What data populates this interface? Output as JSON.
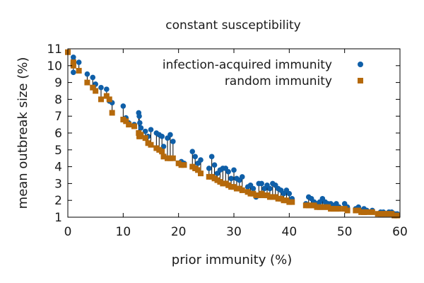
{
  "chart_data": {
    "type": "scatter",
    "title": "constant susceptibility",
    "xlabel": "prior immunity (%)",
    "ylabel": "mean outbreak size (%)",
    "xlim": [
      0,
      60
    ],
    "ylim": [
      1,
      11
    ],
    "xticks": [
      0,
      10,
      20,
      30,
      40,
      50,
      60
    ],
    "yticks": [
      1,
      2,
      3,
      4,
      5,
      6,
      7,
      8,
      9,
      10,
      11
    ],
    "legend_position": "top-right",
    "colors": {
      "infection": "#0f5fa8",
      "random": "#b5690b",
      "connector": "#000000"
    },
    "series": [
      {
        "name": "infection-acquired immunity",
        "marker": "circle",
        "points": [
          [
            0,
            10.8
          ],
          [
            1,
            10.5
          ],
          [
            1,
            9.6
          ],
          [
            1,
            10.3
          ],
          [
            2,
            10.2
          ],
          [
            3.5,
            9.5
          ],
          [
            4.5,
            9.3
          ],
          [
            5,
            8.9
          ],
          [
            6,
            8.7
          ],
          [
            7,
            8.6
          ],
          [
            7.5,
            7.9
          ],
          [
            8,
            7.8
          ],
          [
            10,
            7.6
          ],
          [
            10.5,
            6.9
          ],
          [
            11,
            6.6
          ],
          [
            12,
            6.5
          ],
          [
            12.8,
            7.2
          ],
          [
            12.9,
            7.0
          ],
          [
            13,
            6.6
          ],
          [
            13.2,
            6.3
          ],
          [
            14,
            6.1
          ],
          [
            14.5,
            5.8
          ],
          [
            15,
            6.2
          ],
          [
            16,
            6.0
          ],
          [
            16.5,
            5.9
          ],
          [
            17,
            5.8
          ],
          [
            17.3,
            5.2
          ],
          [
            18,
            5.7
          ],
          [
            18.5,
            5.9
          ],
          [
            19,
            5.5
          ],
          [
            20,
            4.2
          ],
          [
            20.5,
            4.3
          ],
          [
            21,
            4.2
          ],
          [
            22.5,
            4.9
          ],
          [
            23,
            4.6
          ],
          [
            23.5,
            4.2
          ],
          [
            24,
            4.4
          ],
          [
            25.5,
            3.9
          ],
          [
            26,
            4.6
          ],
          [
            26.5,
            4.1
          ],
          [
            27,
            3.6
          ],
          [
            27.5,
            3.8
          ],
          [
            28,
            3.9
          ],
          [
            28.5,
            3.9
          ],
          [
            29,
            3.7
          ],
          [
            29.5,
            3.3
          ],
          [
            30,
            3.8
          ],
          [
            30.5,
            3.3
          ],
          [
            31,
            3.2
          ],
          [
            31.5,
            3.4
          ],
          [
            32.5,
            2.8
          ],
          [
            33,
            2.9
          ],
          [
            33.5,
            2.7
          ],
          [
            34,
            2.2
          ],
          [
            34.5,
            3.0
          ],
          [
            35,
            3.0
          ],
          [
            35.5,
            2.7
          ],
          [
            36,
            2.9
          ],
          [
            36.5,
            2.7
          ],
          [
            37,
            3.0
          ],
          [
            37.5,
            2.9
          ],
          [
            38,
            2.7
          ],
          [
            38.5,
            2.6
          ],
          [
            39,
            2.4
          ],
          [
            39.5,
            2.6
          ],
          [
            40,
            2.4
          ],
          [
            40.5,
            2.1
          ],
          [
            43,
            1.8
          ],
          [
            43.5,
            2.2
          ],
          [
            44,
            2.1
          ],
          [
            44.5,
            1.9
          ],
          [
            45,
            1.8
          ],
          [
            45.5,
            1.9
          ],
          [
            46,
            2.1
          ],
          [
            46.5,
            1.9
          ],
          [
            47,
            1.8
          ],
          [
            47.5,
            1.8
          ],
          [
            48,
            1.7
          ],
          [
            48.5,
            1.8
          ],
          [
            49,
            1.6
          ],
          [
            50,
            1.8
          ],
          [
            50.5,
            1.6
          ],
          [
            52,
            1.5
          ],
          [
            52.5,
            1.6
          ],
          [
            53,
            1.4
          ],
          [
            53.5,
            1.5
          ],
          [
            54,
            1.4
          ],
          [
            55,
            1.4
          ],
          [
            56,
            1.2
          ],
          [
            56.5,
            1.3
          ],
          [
            57,
            1.3
          ],
          [
            57.5,
            1.2
          ],
          [
            58,
            1.3
          ],
          [
            58.5,
            1.3
          ],
          [
            59,
            1.2
          ],
          [
            59.5,
            1.2
          ]
        ]
      },
      {
        "name": "random immunity",
        "marker": "square",
        "points": [
          [
            0,
            10.8
          ],
          [
            1,
            10.2
          ],
          [
            1,
            10.0
          ],
          [
            1,
            10.1
          ],
          [
            2,
            9.7
          ],
          [
            3.5,
            9.0
          ],
          [
            4.5,
            8.7
          ],
          [
            5,
            8.5
          ],
          [
            6,
            8.0
          ],
          [
            7,
            8.2
          ],
          [
            7.5,
            8.0
          ],
          [
            8,
            7.2
          ],
          [
            10,
            6.8
          ],
          [
            10.5,
            6.7
          ],
          [
            11,
            6.5
          ],
          [
            12,
            6.4
          ],
          [
            12.8,
            6.0
          ],
          [
            12.9,
            5.8
          ],
          [
            13,
            5.8
          ],
          [
            13.2,
            5.9
          ],
          [
            14,
            5.7
          ],
          [
            14.5,
            5.4
          ],
          [
            15,
            5.3
          ],
          [
            16,
            5.1
          ],
          [
            16.5,
            5.0
          ],
          [
            17,
            4.9
          ],
          [
            17.3,
            4.6
          ],
          [
            18,
            4.5
          ],
          [
            18.5,
            4.5
          ],
          [
            19,
            4.5
          ],
          [
            20,
            4.2
          ],
          [
            20.5,
            4.1
          ],
          [
            21,
            4.1
          ],
          [
            22.5,
            4.0
          ],
          [
            23,
            3.9
          ],
          [
            23.5,
            3.8
          ],
          [
            24,
            3.6
          ],
          [
            25.5,
            3.4
          ],
          [
            26,
            3.4
          ],
          [
            26.5,
            3.3
          ],
          [
            27,
            3.2
          ],
          [
            27.5,
            3.1
          ],
          [
            28,
            3.0
          ],
          [
            28.5,
            3.0
          ],
          [
            29,
            2.9
          ],
          [
            29.5,
            2.8
          ],
          [
            30,
            2.8
          ],
          [
            30.5,
            2.7
          ],
          [
            31,
            2.7
          ],
          [
            31.5,
            2.6
          ],
          [
            32.5,
            2.5
          ],
          [
            33,
            2.4
          ],
          [
            33.5,
            2.4
          ],
          [
            34,
            2.3
          ],
          [
            34.5,
            2.3
          ],
          [
            35,
            2.4
          ],
          [
            35.5,
            2.3
          ],
          [
            36,
            2.3
          ],
          [
            36.5,
            2.2
          ],
          [
            37,
            2.2
          ],
          [
            37.5,
            2.2
          ],
          [
            38,
            2.1
          ],
          [
            38.5,
            2.1
          ],
          [
            39,
            2.0
          ],
          [
            39.5,
            2.0
          ],
          [
            40,
            1.9
          ],
          [
            40.5,
            1.9
          ],
          [
            43,
            1.7
          ],
          [
            43.5,
            1.7
          ],
          [
            44,
            1.7
          ],
          [
            44.5,
            1.7
          ],
          [
            45,
            1.6
          ],
          [
            45.5,
            1.6
          ],
          [
            46,
            1.6
          ],
          [
            46.5,
            1.6
          ],
          [
            47,
            1.6
          ],
          [
            47.5,
            1.5
          ],
          [
            48,
            1.5
          ],
          [
            48.5,
            1.5
          ],
          [
            49,
            1.5
          ],
          [
            50,
            1.5
          ],
          [
            50.5,
            1.4
          ],
          [
            52,
            1.4
          ],
          [
            52.5,
            1.4
          ],
          [
            53,
            1.3
          ],
          [
            53.5,
            1.3
          ],
          [
            54,
            1.3
          ],
          [
            55,
            1.3
          ],
          [
            56,
            1.2
          ],
          [
            56.5,
            1.2
          ],
          [
            57,
            1.2
          ],
          [
            57.5,
            1.2
          ],
          [
            58,
            1.2
          ],
          [
            58.5,
            1.2
          ],
          [
            59,
            1.1
          ],
          [
            59.5,
            1.1
          ]
        ]
      }
    ]
  }
}
